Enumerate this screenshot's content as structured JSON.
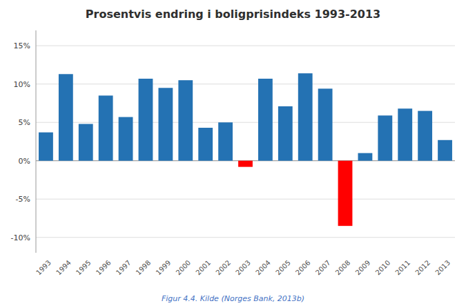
{
  "chart_data": {
    "type": "bar",
    "title": "Prosentvis endring i boligprisindeks 1993-2013",
    "caption": "Figur 4.4. Kilde (Norges Bank, 2013b)",
    "categories": [
      "1993",
      "1994",
      "1995",
      "1996",
      "1997",
      "1998",
      "1999",
      "2000",
      "2001",
      "2002",
      "2003",
      "2004",
      "2005",
      "2006",
      "2007",
      "2008",
      "2009",
      "2010",
      "2011",
      "2012",
      "2013"
    ],
    "values": [
      3.7,
      11.3,
      4.8,
      8.5,
      5.7,
      10.7,
      9.5,
      10.5,
      4.3,
      5.0,
      -0.8,
      10.7,
      7.1,
      11.4,
      9.4,
      -8.5,
      1.0,
      5.9,
      6.8,
      6.5,
      2.7
    ],
    "colors": [
      "#2472B3",
      "#2472B3",
      "#2472B3",
      "#2472B3",
      "#2472B3",
      "#2472B3",
      "#2472B3",
      "#2472B3",
      "#2472B3",
      "#2472B3",
      "#FF0000",
      "#2472B3",
      "#2472B3",
      "#2472B3",
      "#2472B3",
      "#FF0000",
      "#2472B3",
      "#2472B3",
      "#2472B3",
      "#2472B3",
      "#2472B3"
    ],
    "ylim": [
      -12,
      17
    ],
    "yticks": [
      {
        "value": -10,
        "label": "-10%"
      },
      {
        "value": -5,
        "label": "-5%"
      },
      {
        "value": 0,
        "label": "0%"
      },
      {
        "value": 5,
        "label": "5%"
      },
      {
        "value": 10,
        "label": "10%"
      },
      {
        "value": 15,
        "label": "15%"
      }
    ],
    "grid": true
  }
}
